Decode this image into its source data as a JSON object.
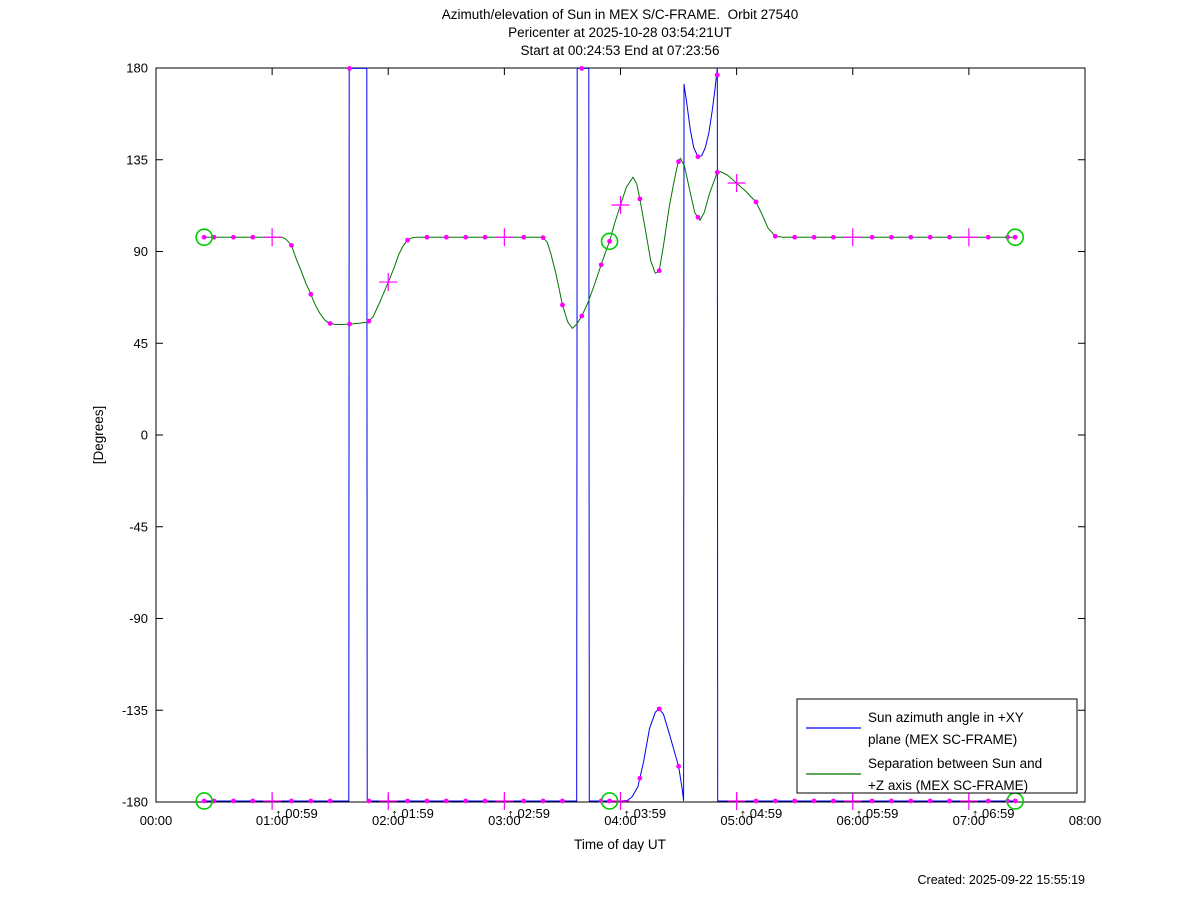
{
  "title": {
    "line1": "Azimuth/elevation of Sun in MEX S/C-FRAME.  Orbit 27540",
    "line2": "Pericenter at 2025-10-28 03:54:21UT",
    "line3": "Start at 00:24:53 End at 07:23:56"
  },
  "axis": {
    "xlabel": "Time of day UT",
    "ylabel": "[Degrees]",
    "x_tick_labels": [
      "00:00",
      "01:00",
      "02:00",
      "03:00",
      "04:00",
      "05:00",
      "06:00",
      "07:00",
      "08:00"
    ],
    "y_tick_values": [
      180,
      135,
      90,
      45,
      0,
      -45,
      -90,
      -135,
      -180
    ],
    "xlim_hours": [
      0,
      8
    ],
    "ylim_degrees": [
      -180,
      180
    ]
  },
  "annotations": {
    "glyph": "↑",
    "items": [
      {
        "hour": 1,
        "label": "00:59"
      },
      {
        "hour": 2,
        "label": "01:59"
      },
      {
        "hour": 3,
        "label": "02:59"
      },
      {
        "hour": 4,
        "label": "03:59"
      },
      {
        "hour": 5,
        "label": "04:59"
      },
      {
        "hour": 6,
        "label": "05:59"
      },
      {
        "hour": 7,
        "label": "06:59"
      }
    ]
  },
  "legend": {
    "entries": [
      {
        "color": "#0000ee",
        "line1": "Sun azimuth angle in +XY",
        "line2": "plane (MEX SC-FRAME)"
      },
      {
        "color": "#007700",
        "line1": "Separation between Sun and",
        "line2": "+Z axis (MEX SC-FRAME)"
      }
    ]
  },
  "footer": {
    "created": "Created: 2025-09-22 15:55:19"
  },
  "chart_data": {
    "type": "line",
    "title": "Azimuth/elevation of Sun in MEX S/C-FRAME.  Orbit 27540",
    "xlabel": "Time of day UT",
    "ylabel": "[Degrees]",
    "xlim": [
      0,
      8
    ],
    "ylim": [
      -180,
      180
    ],
    "y_ticks": [
      180,
      135,
      90,
      45,
      0,
      -45,
      -90,
      -135,
      -180
    ],
    "x_ticks_hours": [
      0,
      1,
      2,
      3,
      4,
      5,
      6,
      7,
      8
    ],
    "start_h": 0.4147,
    "pericenter_h": 3.9059,
    "end_h": 7.3989,
    "special_points_h": [
      0.4147,
      3.9059,
      7.3989
    ],
    "markers": {
      "dot_every_min": 10,
      "plus_every_min": 60,
      "first_min": 30,
      "last_min": 440,
      "color": "#ff00ff",
      "circle_color": "#00cc00"
    },
    "series": [
      {
        "name": "Sun azimuth angle in +XY plane (MEX SC-FRAME)",
        "color": "#0000ee",
        "points": [
          [
            0.4147,
            -179.5
          ],
          [
            0.8,
            -179.5
          ],
          [
            1.2,
            -179.5
          ],
          [
            1.66,
            -179.5
          ],
          [
            1.664,
            179.8
          ],
          [
            1.74,
            179.8
          ],
          [
            1.815,
            179.8
          ],
          [
            1.819,
            -179.5
          ],
          [
            2.2,
            -179.5
          ],
          [
            2.8,
            -179.5
          ],
          [
            3.3,
            -179.5
          ],
          [
            3.623,
            -179.5
          ],
          [
            3.627,
            179.8
          ],
          [
            3.68,
            179.8
          ],
          [
            3.727,
            179.8
          ],
          [
            3.731,
            -179.5
          ],
          [
            4.0,
            -179.5
          ],
          [
            4.06,
            -179.2
          ],
          [
            4.1,
            -177.5
          ],
          [
            4.15,
            -172.5
          ],
          [
            4.2,
            -160
          ],
          [
            4.25,
            -144
          ],
          [
            4.3,
            -136
          ],
          [
            4.333,
            -134.3
          ],
          [
            4.37,
            -137
          ],
          [
            4.42,
            -146.5
          ],
          [
            4.47,
            -156.5
          ],
          [
            4.5,
            -162.5
          ],
          [
            4.53,
            -173
          ],
          [
            4.543,
            -179.3
          ],
          [
            4.547,
            172
          ],
          [
            4.57,
            163
          ],
          [
            4.6,
            150
          ],
          [
            4.63,
            141
          ],
          [
            4.6667,
            136.5
          ],
          [
            4.7,
            137
          ],
          [
            4.73,
            141
          ],
          [
            4.76,
            148
          ],
          [
            4.79,
            159
          ],
          [
            4.81,
            168
          ],
          [
            4.8333,
            179.8
          ],
          [
            4.837,
            -179.5
          ],
          [
            5.2,
            -179.5
          ],
          [
            5.8,
            -179.5
          ],
          [
            6.5,
            -179.5
          ],
          [
            7.0,
            -179.5
          ],
          [
            7.3989,
            -179.5
          ]
        ]
      },
      {
        "name": "Separation between Sun and +Z axis (MEX SC-FRAME)",
        "color": "#007700",
        "points": [
          [
            0.4147,
            97
          ],
          [
            0.6,
            97
          ],
          [
            0.8,
            97
          ],
          [
            1.0,
            97
          ],
          [
            1.085,
            97
          ],
          [
            1.12,
            96
          ],
          [
            1.167,
            93
          ],
          [
            1.21,
            86
          ],
          [
            1.25,
            80.5
          ],
          [
            1.29,
            74.5
          ],
          [
            1.326,
            70
          ],
          [
            1.37,
            64
          ],
          [
            1.41,
            59.8
          ],
          [
            1.45,
            56.6
          ],
          [
            1.49,
            54.8
          ],
          [
            1.55,
            54.2
          ],
          [
            1.6,
            54.2
          ],
          [
            1.667,
            54.4
          ],
          [
            1.75,
            54.8
          ],
          [
            1.826,
            55.4
          ],
          [
            1.87,
            58
          ],
          [
            1.93,
            65.5
          ],
          [
            2.0,
            75
          ],
          [
            2.05,
            82
          ],
          [
            2.09,
            88.5
          ],
          [
            2.125,
            92.5
          ],
          [
            2.167,
            95.6
          ],
          [
            2.21,
            96.8
          ],
          [
            2.25,
            97
          ],
          [
            2.5,
            97
          ],
          [
            2.75,
            97
          ],
          [
            3.0,
            97
          ],
          [
            3.2,
            97
          ],
          [
            3.33,
            97
          ],
          [
            3.37,
            94.5
          ],
          [
            3.4,
            89
          ],
          [
            3.44,
            80
          ],
          [
            3.47,
            72
          ],
          [
            3.5,
            63.8
          ],
          [
            3.545,
            55.5
          ],
          [
            3.585,
            52.3
          ],
          [
            3.625,
            54.5
          ],
          [
            3.667,
            58.4
          ],
          [
            3.72,
            65
          ],
          [
            3.78,
            74.5
          ],
          [
            3.833,
            83.4
          ],
          [
            3.87,
            89.5
          ],
          [
            3.906,
            95
          ],
          [
            3.95,
            104
          ],
          [
            4.0,
            112.8
          ],
          [
            4.05,
            121.5
          ],
          [
            4.108,
            126.5
          ],
          [
            4.14,
            123
          ],
          [
            4.167,
            115.7
          ],
          [
            4.22,
            99
          ],
          [
            4.26,
            85.5
          ],
          [
            4.3,
            79.3
          ],
          [
            4.333,
            80.5
          ],
          [
            4.37,
            93
          ],
          [
            4.42,
            112
          ],
          [
            4.46,
            124
          ],
          [
            4.495,
            133.5
          ],
          [
            4.515,
            135.8
          ],
          [
            4.55,
            132
          ],
          [
            4.6,
            119
          ],
          [
            4.64,
            109
          ],
          [
            4.685,
            105.3
          ],
          [
            4.72,
            109
          ],
          [
            4.77,
            119
          ],
          [
            4.8333,
            128.8
          ],
          [
            4.86,
            129.2
          ],
          [
            4.92,
            127.5
          ],
          [
            5.0,
            123.6
          ],
          [
            5.08,
            119.5
          ],
          [
            5.167,
            114.3
          ],
          [
            5.22,
            108
          ],
          [
            5.27,
            101.5
          ],
          [
            5.333,
            97.5
          ],
          [
            5.4,
            97
          ],
          [
            5.5,
            97
          ],
          [
            6.0,
            97
          ],
          [
            6.5,
            97
          ],
          [
            7.0,
            97
          ],
          [
            7.3989,
            97
          ]
        ]
      }
    ]
  }
}
